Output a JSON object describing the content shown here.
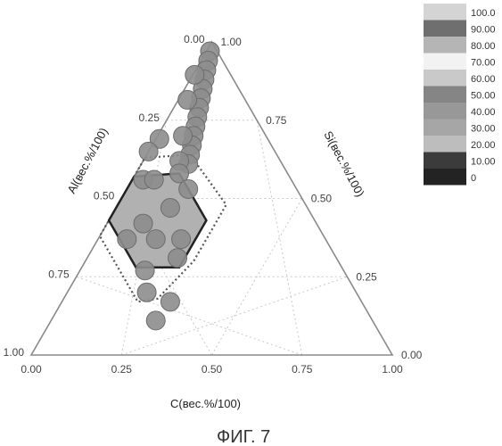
{
  "figure": {
    "caption": "ФИГ. 7"
  },
  "chart_data": {
    "type": "scatter",
    "subtype": "ternary",
    "axes": {
      "c": {
        "title": "C(вес.%/100)",
        "ticks": [
          "0.00",
          "0.25",
          "0.50",
          "0.75",
          "1.00"
        ]
      },
      "al": {
        "title": "Al(вес.%/100)",
        "ticks": [
          "0.00",
          "0.25",
          "0.50",
          "0.75",
          "1.00"
        ]
      },
      "si": {
        "title": "Si(вес.%/100)",
        "ticks": [
          "1.00",
          "0.75",
          "0.50",
          "0.25",
          "0.00"
        ]
      },
      "range": [
        0,
        1
      ]
    },
    "grid": true,
    "points_al_c": [
      [
        0.02,
        0.01
      ],
      [
        0.04,
        0.02
      ],
      [
        0.06,
        0.03
      ],
      [
        0.08,
        0.04
      ],
      [
        0.1,
        0.05
      ],
      [
        0.12,
        0.06
      ],
      [
        0.14,
        0.07
      ],
      [
        0.16,
        0.08
      ],
      [
        0.18,
        0.09
      ],
      [
        0.2,
        0.1
      ],
      [
        0.22,
        0.11
      ],
      [
        0.24,
        0.12
      ],
      [
        0.26,
        0.13
      ],
      [
        0.1,
        0.005
      ],
      [
        0.16,
        0.025
      ],
      [
        0.23,
        0.07
      ],
      [
        0.28,
        0.1
      ],
      [
        0.3,
        0.01
      ],
      [
        0.35,
        0.0
      ],
      [
        0.41,
        0.03
      ],
      [
        0.38,
        0.06
      ],
      [
        0.3,
        0.12
      ],
      [
        0.38,
        0.15
      ],
      [
        0.3,
        0.17
      ],
      [
        0.4,
        0.23
      ],
      [
        0.48,
        0.1
      ],
      [
        0.47,
        0.16
      ],
      [
        0.44,
        0.25
      ],
      [
        0.55,
        0.08
      ],
      [
        0.55,
        0.18
      ],
      [
        0.53,
        0.3
      ],
      [
        0.58,
        0.22
      ],
      [
        0.6,
        0.29
      ]
    ],
    "solid_polygon_al_c": [
      [
        0.3,
        0.12
      ],
      [
        0.3,
        0.27
      ],
      [
        0.45,
        0.27
      ],
      [
        0.57,
        0.15
      ],
      [
        0.57,
        0.0
      ],
      [
        0.43,
        0.0
      ]
    ],
    "dotted_polygon_al_c": [
      [
        0.24,
        0.12
      ],
      [
        0.22,
        0.3
      ],
      [
        0.4,
        0.3
      ],
      [
        0.56,
        0.26
      ],
      [
        0.62,
        0.21
      ],
      [
        0.62,
        0.0
      ],
      [
        0.37,
        0.0
      ]
    ],
    "legend": {
      "placement": "right",
      "labels": [
        "100.0",
        "90.00",
        "80.00",
        "70.00",
        "60.00",
        "50.00",
        "40.00",
        "30.00",
        "20.00",
        "10.00",
        "0"
      ],
      "colors": [
        "#d4d4d4",
        "#6f6f6f",
        "#b5b5b5",
        "#f2f2f2",
        "#c9c9c9",
        "#858585",
        "#989898",
        "#a6a6a6",
        "#bdbdbd",
        "#3b3b3b",
        "#232323"
      ]
    },
    "colors": {
      "marker": "#8d8d8d",
      "marker_edge": "#6c6c6c",
      "solid_fill": "#b1b1b1",
      "solid_stroke": "#222222",
      "dotted_stroke": "#555555",
      "grid": "#c8c8c8",
      "frame": "#8a8a8a"
    }
  }
}
